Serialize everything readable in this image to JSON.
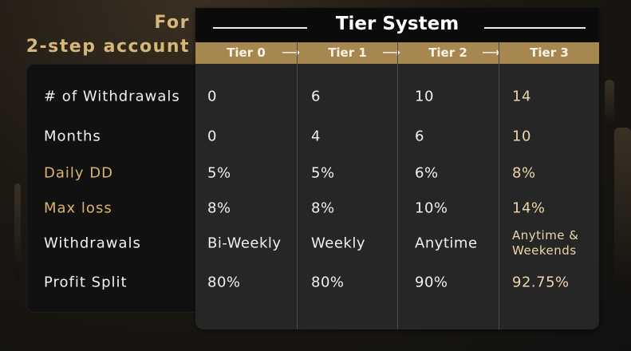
{
  "heading": {
    "line1": "For",
    "line2": "2-step account"
  },
  "table": {
    "title": "Tier System",
    "tiers": [
      "Tier 0",
      "Tier 1",
      "Tier 2",
      "Tier 3"
    ],
    "arrow": "⟶",
    "rows": [
      {
        "label": "# of Withdrawals",
        "highlight": false,
        "values": [
          "0",
          "6",
          "10",
          "14"
        ]
      },
      {
        "label": "Months",
        "highlight": false,
        "values": [
          "0",
          "4",
          "6",
          "10"
        ]
      },
      {
        "label": "Daily DD",
        "highlight": true,
        "values": [
          "5%",
          "5%",
          "6%",
          "8%"
        ]
      },
      {
        "label": "Max loss",
        "highlight": true,
        "values": [
          "8%",
          "8%",
          "10%",
          "14%"
        ]
      },
      {
        "label": "Withdrawals",
        "highlight": false,
        "values": [
          "Bi-Weekly",
          "Weekly",
          "Anytime",
          "Anytime & Weekends"
        ]
      },
      {
        "label": "Profit Split",
        "highlight": false,
        "values": [
          "80%",
          "80%",
          "90%",
          "92.75%"
        ]
      }
    ]
  },
  "colors": {
    "gold": "#d9b46a",
    "band": "#a6874f",
    "panel": "#262626"
  }
}
